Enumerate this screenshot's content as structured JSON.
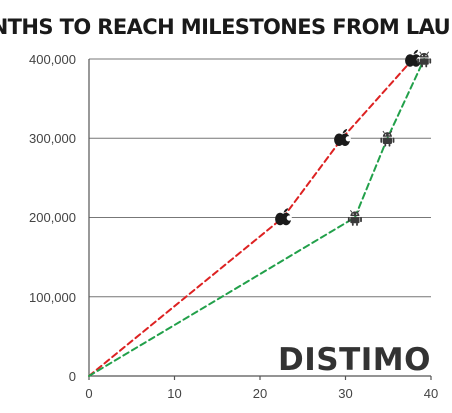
{
  "chart_data": {
    "type": "line",
    "title": "MONTHS TO REACH MILESTONES FROM LAUNCH",
    "xlabel": "",
    "ylabel": "",
    "xlim": [
      0,
      40
    ],
    "ylim": [
      0,
      400000
    ],
    "x_ticks": [
      "0",
      "10",
      "20",
      "30",
      "40"
    ],
    "y_ticks": [
      "0",
      "100,000",
      "200,000",
      "300,000",
      "400,000"
    ],
    "grid": "horizontal",
    "series": [
      {
        "icon": "apple-icon",
        "color": "#dd2222",
        "line_style": "dashed",
        "points": [
          {
            "x": 0,
            "y": 0
          },
          {
            "x": 22.7,
            "y": 200000
          },
          {
            "x": 29.6,
            "y": 300000
          },
          {
            "x": 37.9,
            "y": 400000
          }
        ]
      },
      {
        "icon": "android-icon",
        "color": "#22a04a",
        "line_style": "dashed",
        "points": [
          {
            "x": 0,
            "y": 0
          },
          {
            "x": 31.1,
            "y": 200000
          },
          {
            "x": 34.9,
            "y": 300000
          },
          {
            "x": 39.2,
            "y": 400000
          }
        ]
      }
    ]
  },
  "watermark": "DISTIMO"
}
